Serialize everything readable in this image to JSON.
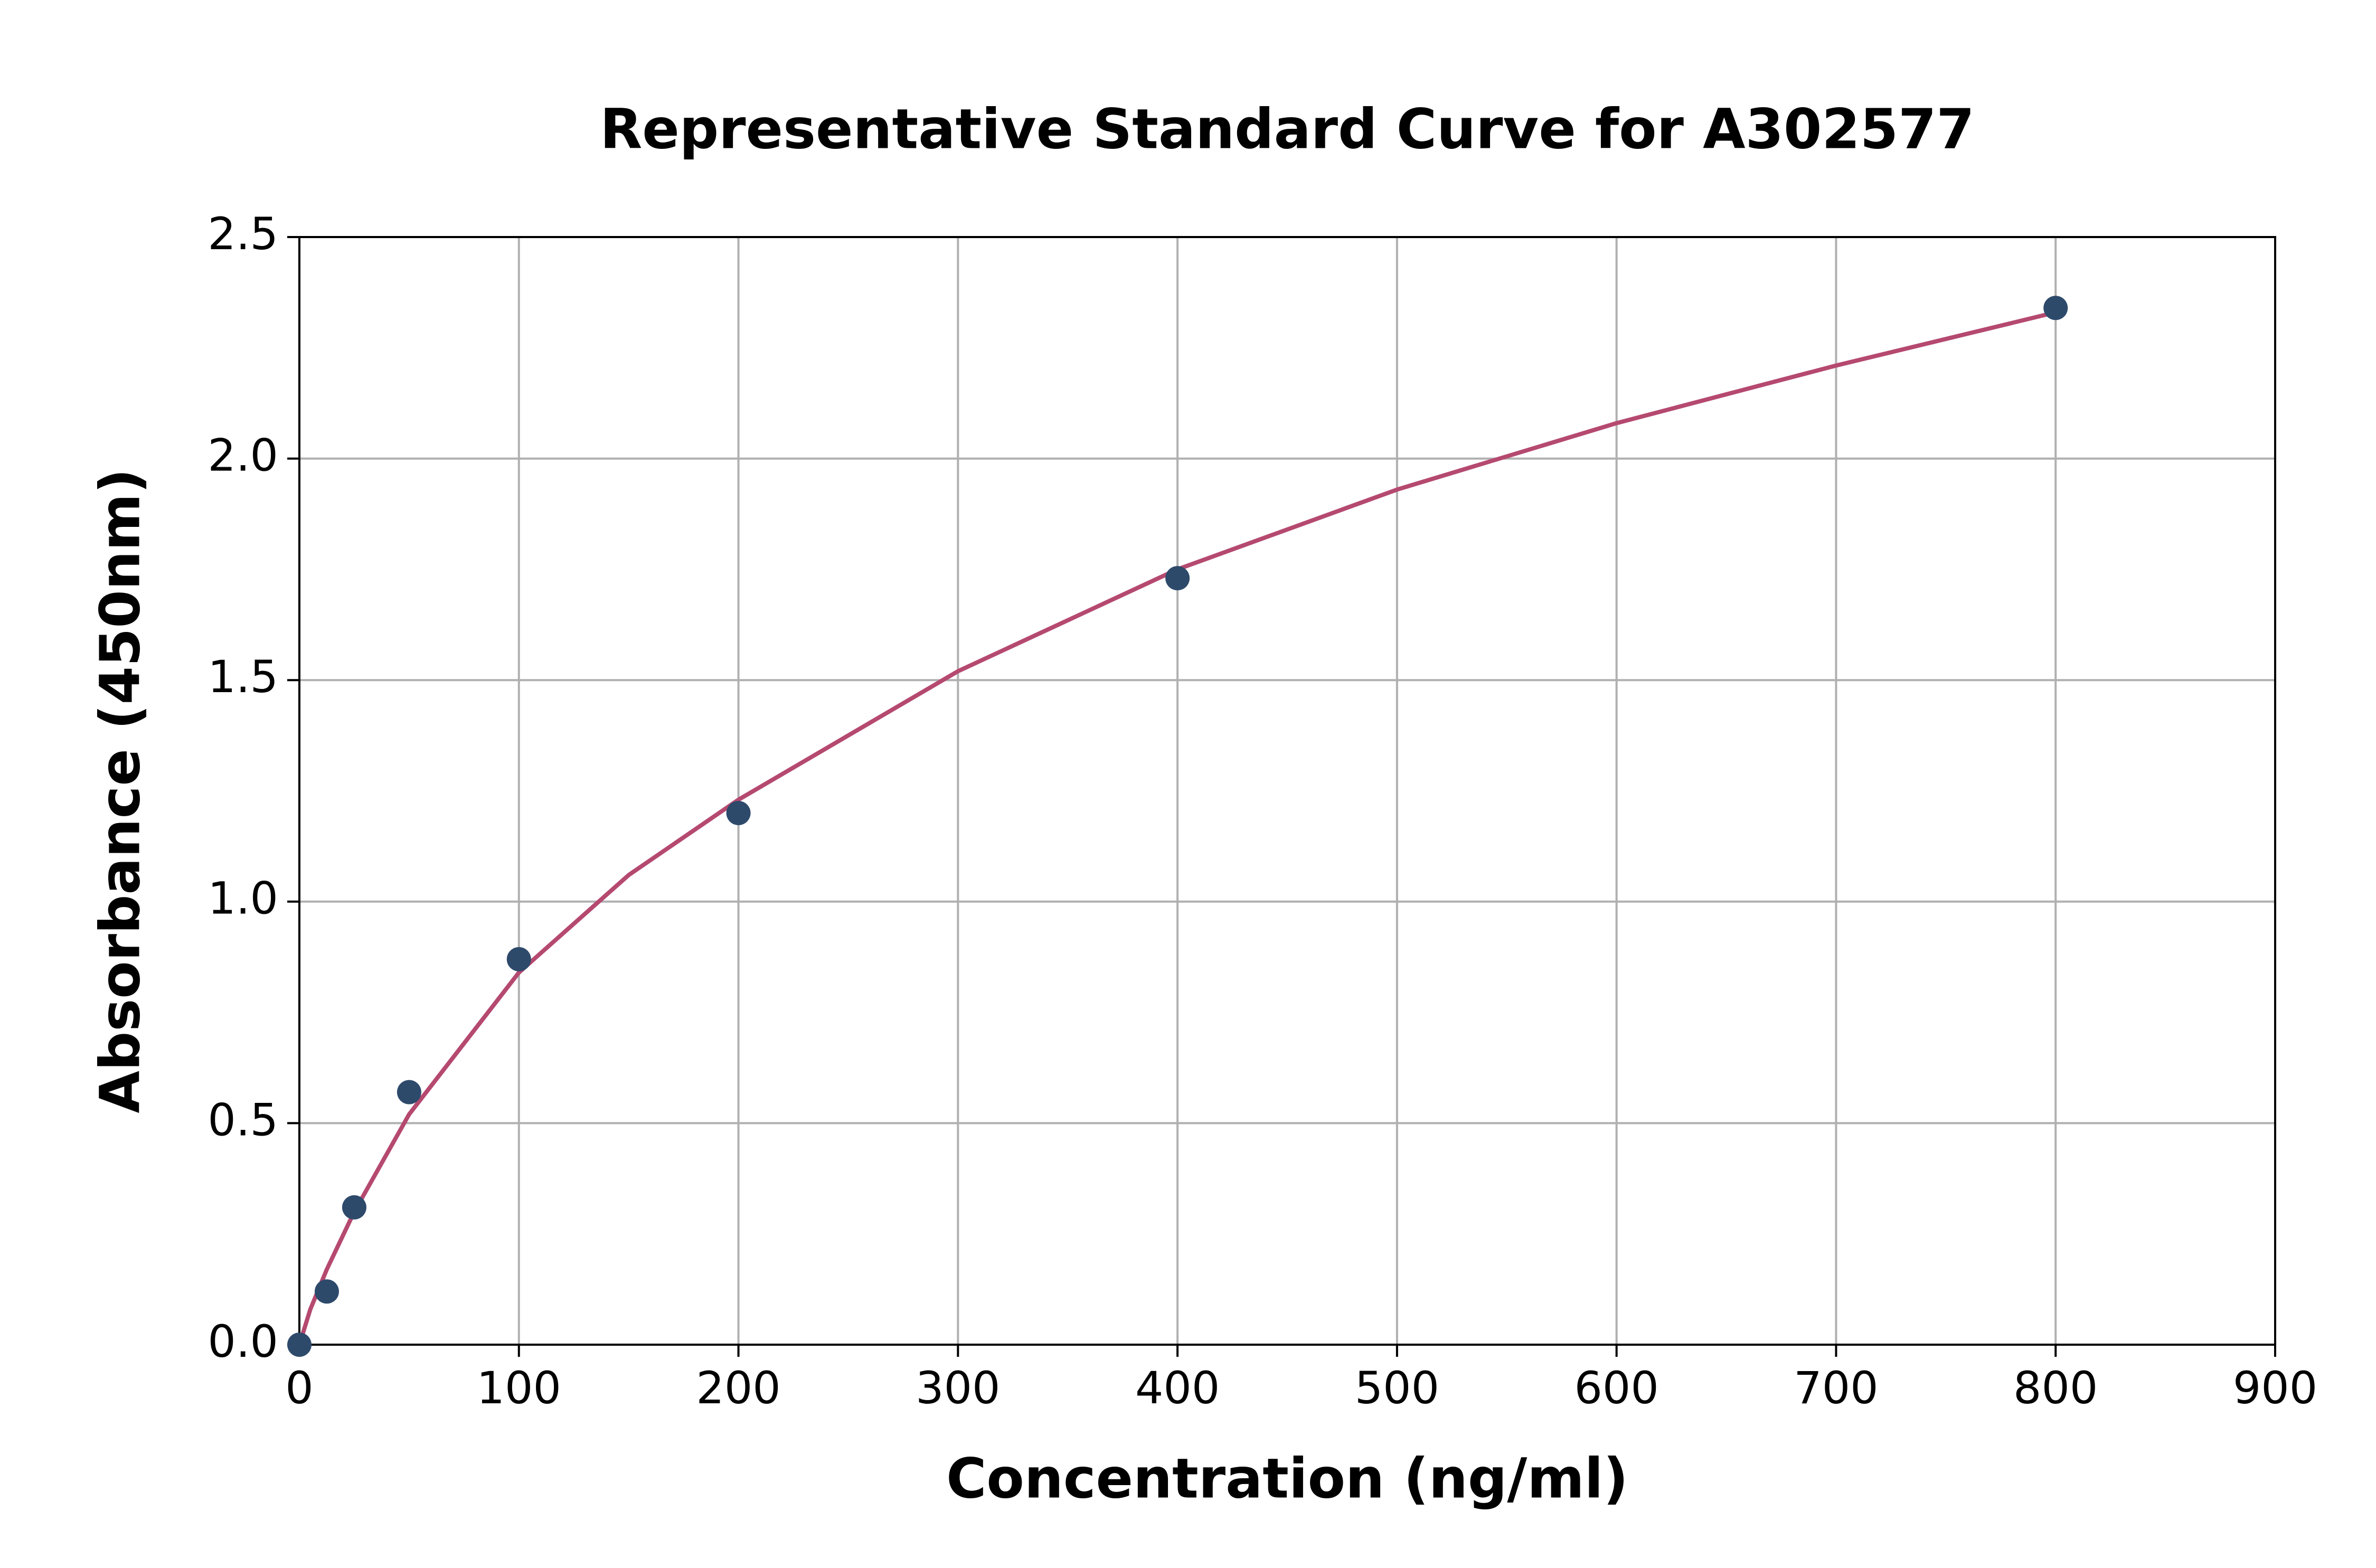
{
  "chart_data": {
    "type": "scatter",
    "title": "Representative Standard Curve for A302577",
    "xlabel": "Concentration (ng/ml)",
    "ylabel": "Absorbance (450nm)",
    "x": [
      0,
      12.5,
      25,
      50,
      100,
      200,
      400,
      800
    ],
    "values": [
      0.0,
      0.12,
      0.31,
      0.57,
      0.87,
      1.2,
      1.73,
      2.34
    ],
    "color": "#2e4a6b",
    "curve": {
      "color": "#b5496f",
      "x": [
        0,
        5,
        12.5,
        25,
        50,
        100,
        150,
        200,
        300,
        400,
        500,
        600,
        700,
        800
      ],
      "values": [
        0.0,
        0.08,
        0.17,
        0.3,
        0.52,
        0.84,
        1.06,
        1.23,
        1.52,
        1.75,
        1.93,
        2.08,
        2.21,
        2.33
      ]
    },
    "xlim": [
      0,
      900
    ],
    "xticks": [
      0,
      100,
      200,
      300,
      400,
      500,
      600,
      700,
      800,
      900
    ],
    "ylim": [
      0,
      2.5
    ],
    "yticks": [
      {
        "value": 0,
        "label": "0.0"
      },
      {
        "value": 0.5,
        "label": "0.5"
      },
      {
        "value": 1,
        "label": "1.0"
      },
      {
        "value": 1.5,
        "label": "1.5"
      },
      {
        "value": 2,
        "label": "2.0"
      },
      {
        "value": 2.5,
        "label": "2.5"
      }
    ],
    "grid": true
  }
}
